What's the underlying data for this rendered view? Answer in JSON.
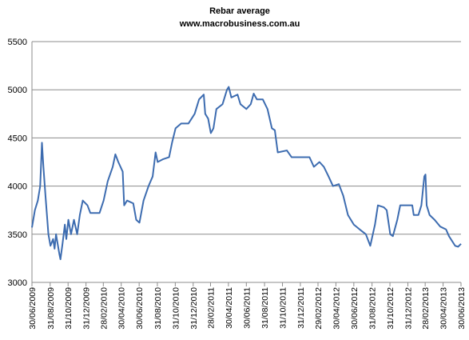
{
  "chart_data": {
    "type": "line",
    "title": "Rebar average",
    "subtitle": "www.macrobusiness.com.au",
    "x": [
      "30/06/2009",
      "10/07/2009",
      "20/07/2009",
      "28/07/2009",
      "03/08/2009",
      "08/08/2009",
      "15/08/2009",
      "20/08/2009",
      "25/08/2009",
      "01/09/2009",
      "10/09/2009",
      "15/09/2009",
      "20/09/2009",
      "01/10/2009",
      "05/10/2009",
      "12/10/2009",
      "20/10/2009",
      "25/10/2009",
      "01/11/2009",
      "10/11/2009",
      "20/11/2009",
      "01/12/2009",
      "10/12/2009",
      "20/12/2009",
      "05/01/2010",
      "15/01/2010",
      "15/02/2010",
      "01/03/2010",
      "15/03/2010",
      "01/04/2010",
      "10/04/2010",
      "20/04/2010",
      "05/05/2010",
      "10/05/2010",
      "20/05/2010",
      "10/06/2010",
      "20/06/2010",
      "01/07/2010",
      "15/07/2010",
      "01/08/2010",
      "15/08/2010",
      "25/08/2010",
      "01/09/2010",
      "20/09/2010",
      "10/10/2010",
      "20/10/2010",
      "01/11/2010",
      "20/11/2010",
      "15/12/2010",
      "05/01/2011",
      "20/01/2011",
      "05/02/2011",
      "10/02/2011",
      "20/02/2011",
      "01/03/2011",
      "10/03/2011",
      "20/03/2011",
      "10/04/2011",
      "25/04/2011",
      "01/05/2011",
      "10/05/2011",
      "31/05/2011",
      "10/06/2011",
      "30/06/2011",
      "15/07/2011",
      "25/07/2011",
      "05/08/2011",
      "25/08/2011",
      "10/09/2011",
      "25/09/2011",
      "05/10/2011",
      "15/10/2011",
      "15/11/2011",
      "01/12/2011",
      "31/01/2012",
      "15/02/2012",
      "05/03/2012",
      "20/03/2012",
      "05/04/2012",
      "20/04/2012",
      "10/05/2012",
      "25/05/2012",
      "10/06/2012",
      "30/06/2012",
      "20/07/2012",
      "10/08/2012",
      "25/08/2012",
      "10/09/2012",
      "20/09/2012",
      "10/10/2012",
      "20/10/2012",
      "01/11/2012",
      "10/11/2012",
      "25/11/2012",
      "05/12/2012",
      "15/01/2013",
      "20/01/2013",
      "05/02/2013",
      "15/02/2013",
      "25/02/2013",
      "01/03/2013",
      "05/03/2013",
      "15/03/2013",
      "01/04/2013",
      "20/04/2013",
      "10/05/2013",
      "20/05/2013",
      "10/06/2013",
      "20/06/2013",
      "30/06/2013"
    ],
    "values": [
      3570,
      3750,
      3850,
      4000,
      4450,
      4200,
      3900,
      3700,
      3500,
      3380,
      3450,
      3350,
      3500,
      3300,
      3240,
      3400,
      3600,
      3450,
      3650,
      3500,
      3650,
      3500,
      3700,
      3850,
      3800,
      3720,
      3720,
      3850,
      4050,
      4200,
      4330,
      4250,
      4150,
      3800,
      3850,
      3820,
      3650,
      3620,
      3850,
      4000,
      4100,
      4350,
      4250,
      4280,
      4300,
      4450,
      4600,
      4650,
      4650,
      4750,
      4900,
      4950,
      4750,
      4700,
      4550,
      4600,
      4800,
      4850,
      5000,
      5030,
      4920,
      4950,
      4850,
      4800,
      4850,
      4960,
      4900,
      4900,
      4800,
      4600,
      4580,
      4350,
      4370,
      4300,
      4300,
      4200,
      4250,
      4200,
      4100,
      4000,
      4020,
      3900,
      3700,
      3600,
      3550,
      3500,
      3380,
      3600,
      3800,
      3780,
      3750,
      3500,
      3480,
      3650,
      3800,
      3800,
      3700,
      3700,
      3800,
      4100,
      4120,
      3800,
      3700,
      3650,
      3580,
      3550,
      3480,
      3380,
      3370,
      3400
    ],
    "color": "#3d6cb0",
    "xlim": [
      "30/06/2009",
      "30/06/2013"
    ],
    "xticks": [
      "30/06/2009",
      "31/08/2009",
      "31/10/2009",
      "31/12/2009",
      "28/02/2010",
      "30/04/2010",
      "30/06/2010",
      "31/08/2010",
      "31/10/2010",
      "31/12/2010",
      "28/02/2011",
      "30/04/2011",
      "30/06/2011",
      "31/08/2011",
      "31/10/2011",
      "31/12/2011",
      "29/02/2012",
      "30/04/2012",
      "30/06/2012",
      "31/08/2012",
      "31/10/2012",
      "31/12/2012",
      "28/02/2013",
      "30/04/2013",
      "30/06/2013"
    ],
    "ylim": [
      3000,
      5500
    ],
    "yticks": [
      3000,
      3500,
      4000,
      4500,
      5000,
      5500
    ],
    "grid": true
  }
}
